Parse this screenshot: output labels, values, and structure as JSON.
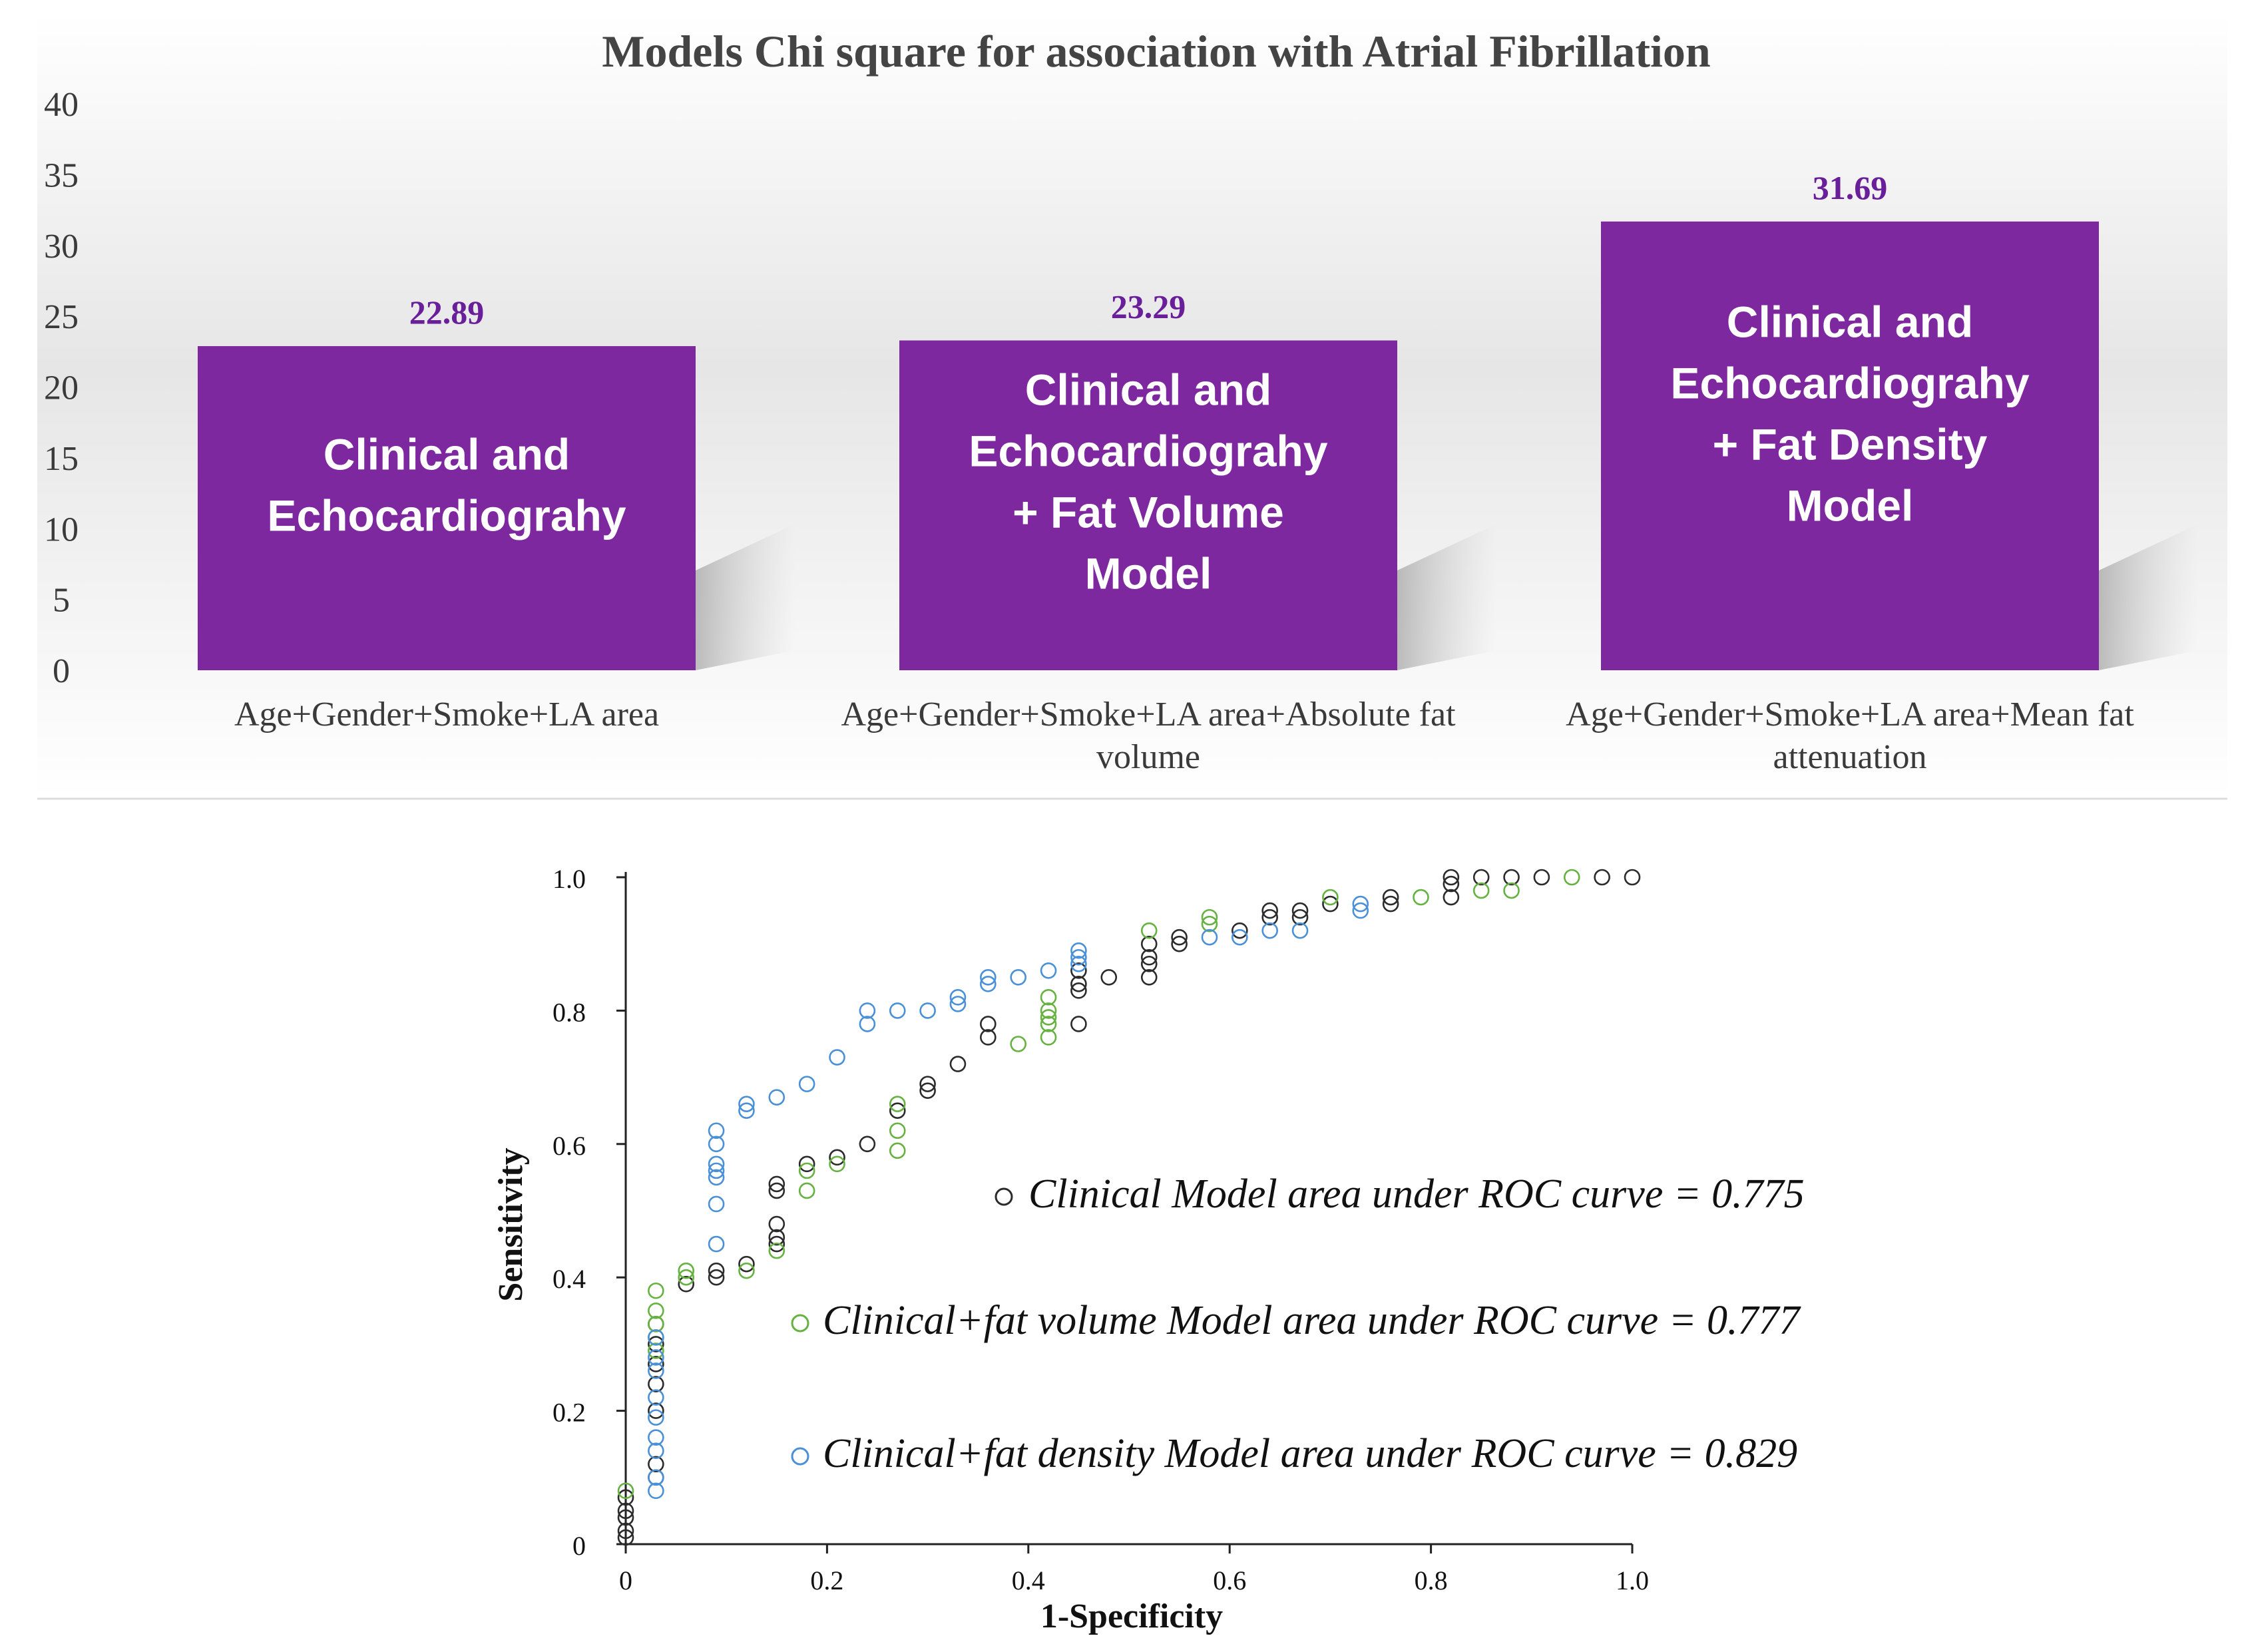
{
  "colors": {
    "bar_fill": "#7e28a0",
    "value_label": "#6a1f9a",
    "text": "#3a3a3a",
    "series_clinical": "#2b2b2b",
    "series_fat_volume": "#66b240",
    "series_fat_density": "#4a90d9"
  },
  "chart_data": [
    {
      "type": "bar",
      "title": "Models Chi square for association with Atrial Fibrillation",
      "ylim": [
        0,
        40
      ],
      "yticks": [
        "0",
        "5",
        "10",
        "15",
        "20",
        "25",
        "30",
        "35",
        "40"
      ],
      "ytick_values": [
        0,
        5,
        10,
        15,
        20,
        25,
        30,
        35,
        40
      ],
      "categories": [
        [
          "Age+Gender+Smoke+LA area"
        ],
        [
          "Age+Gender+Smoke+LA area+Absolute fat",
          "volume"
        ],
        [
          "Age+Gender+Smoke+LA area+Mean fat",
          "attenuation"
        ]
      ],
      "values": [
        22.89,
        23.29,
        31.69
      ],
      "value_labels": [
        "22.89",
        "23.29",
        "31.69"
      ],
      "bar_labels": [
        [
          "Clinical and",
          "Echocardiograhy"
        ],
        [
          "Clinical and",
          "Echocardiograhy",
          "+ Fat Volume",
          "Model"
        ],
        [
          "Clinical and",
          "Echocardiograhy",
          "+ Fat Density",
          "Model"
        ]
      ]
    },
    {
      "type": "scatter",
      "xlabel": "1-Specificity",
      "ylabel": "Sensitivity",
      "xlim": [
        0,
        1
      ],
      "ylim": [
        0,
        1
      ],
      "xticks": [
        "0",
        "0.2",
        "0.4",
        "0.6",
        "0.8",
        "1.0"
      ],
      "xtick_values": [
        0,
        0.2,
        0.4,
        0.6,
        0.8,
        1.0
      ],
      "yticks": [
        "0",
        "0.2",
        "0.4",
        "0.6",
        "0.8",
        "1.0"
      ],
      "ytick_values": [
        0,
        0.2,
        0.4,
        0.6,
        0.8,
        1.0
      ],
      "series": [
        {
          "name": "Clinical Model area under ROC curve = 0.775",
          "color_key": "series_clinical",
          "points": [
            [
              0,
              0.01
            ],
            [
              0,
              0.02
            ],
            [
              0,
              0.04
            ],
            [
              0,
              0.05
            ],
            [
              0,
              0.07
            ],
            [
              0.03,
              0.1
            ],
            [
              0.03,
              0.12
            ],
            [
              0.03,
              0.2
            ],
            [
              0.03,
              0.24
            ],
            [
              0.03,
              0.27
            ],
            [
              0.03,
              0.3
            ],
            [
              0.03,
              0.33
            ],
            [
              0.06,
              0.39
            ],
            [
              0.09,
              0.4
            ],
            [
              0.09,
              0.41
            ],
            [
              0.12,
              0.42
            ],
            [
              0.15,
              0.45
            ],
            [
              0.15,
              0.46
            ],
            [
              0.15,
              0.48
            ],
            [
              0.15,
              0.53
            ],
            [
              0.15,
              0.54
            ],
            [
              0.18,
              0.57
            ],
            [
              0.21,
              0.58
            ],
            [
              0.24,
              0.6
            ],
            [
              0.27,
              0.65
            ],
            [
              0.3,
              0.68
            ],
            [
              0.3,
              0.69
            ],
            [
              0.33,
              0.72
            ],
            [
              0.36,
              0.76
            ],
            [
              0.36,
              0.78
            ],
            [
              0.45,
              0.78
            ],
            [
              0.45,
              0.83
            ],
            [
              0.45,
              0.84
            ],
            [
              0.45,
              0.86
            ],
            [
              0.48,
              0.85
            ],
            [
              0.52,
              0.85
            ],
            [
              0.52,
              0.87
            ],
            [
              0.52,
              0.88
            ],
            [
              0.52,
              0.9
            ],
            [
              0.55,
              0.9
            ],
            [
              0.55,
              0.91
            ],
            [
              0.61,
              0.92
            ],
            [
              0.64,
              0.94
            ],
            [
              0.64,
              0.95
            ],
            [
              0.67,
              0.94
            ],
            [
              0.67,
              0.95
            ],
            [
              0.7,
              0.96
            ],
            [
              0.76,
              0.96
            ],
            [
              0.76,
              0.97
            ],
            [
              0.82,
              0.97
            ],
            [
              0.82,
              0.99
            ],
            [
              0.82,
              1.0
            ],
            [
              0.85,
              1.0
            ],
            [
              0.88,
              1.0
            ],
            [
              0.91,
              1.0
            ],
            [
              0.97,
              1.0
            ],
            [
              1.0,
              1.0
            ]
          ]
        },
        {
          "name": "Clinical+fat volume Model area under ROC curve = 0.777",
          "color_key": "series_fat_volume",
          "points": [
            [
              0,
              0.08
            ],
            [
              0.03,
              0.29
            ],
            [
              0.03,
              0.31
            ],
            [
              0.03,
              0.33
            ],
            [
              0.03,
              0.35
            ],
            [
              0.03,
              0.38
            ],
            [
              0.06,
              0.4
            ],
            [
              0.06,
              0.41
            ],
            [
              0.12,
              0.41
            ],
            [
              0.15,
              0.44
            ],
            [
              0.18,
              0.53
            ],
            [
              0.18,
              0.56
            ],
            [
              0.21,
              0.57
            ],
            [
              0.27,
              0.59
            ],
            [
              0.27,
              0.62
            ],
            [
              0.27,
              0.66
            ],
            [
              0.39,
              0.75
            ],
            [
              0.42,
              0.76
            ],
            [
              0.42,
              0.78
            ],
            [
              0.42,
              0.79
            ],
            [
              0.42,
              0.8
            ],
            [
              0.42,
              0.82
            ],
            [
              0.52,
              0.92
            ],
            [
              0.58,
              0.93
            ],
            [
              0.58,
              0.94
            ],
            [
              0.7,
              0.97
            ],
            [
              0.79,
              0.97
            ],
            [
              0.85,
              0.98
            ],
            [
              0.88,
              0.98
            ],
            [
              0.94,
              1.0
            ]
          ]
        },
        {
          "name": "Clinical+fat density Model area under ROC curve = 0.829",
          "color_key": "series_fat_density",
          "points": [
            [
              0.03,
              0.08
            ],
            [
              0.03,
              0.1
            ],
            [
              0.03,
              0.14
            ],
            [
              0.03,
              0.16
            ],
            [
              0.03,
              0.19
            ],
            [
              0.03,
              0.22
            ],
            [
              0.03,
              0.26
            ],
            [
              0.03,
              0.28
            ],
            [
              0.03,
              0.31
            ],
            [
              0.09,
              0.45
            ],
            [
              0.09,
              0.51
            ],
            [
              0.09,
              0.55
            ],
            [
              0.09,
              0.56
            ],
            [
              0.09,
              0.57
            ],
            [
              0.09,
              0.6
            ],
            [
              0.09,
              0.62
            ],
            [
              0.12,
              0.65
            ],
            [
              0.12,
              0.66
            ],
            [
              0.15,
              0.67
            ],
            [
              0.18,
              0.69
            ],
            [
              0.21,
              0.73
            ],
            [
              0.24,
              0.78
            ],
            [
              0.24,
              0.8
            ],
            [
              0.27,
              0.8
            ],
            [
              0.3,
              0.8
            ],
            [
              0.33,
              0.81
            ],
            [
              0.33,
              0.82
            ],
            [
              0.36,
              0.84
            ],
            [
              0.36,
              0.85
            ],
            [
              0.39,
              0.85
            ],
            [
              0.42,
              0.86
            ],
            [
              0.45,
              0.87
            ],
            [
              0.45,
              0.88
            ],
            [
              0.45,
              0.89
            ],
            [
              0.58,
              0.91
            ],
            [
              0.61,
              0.91
            ],
            [
              0.64,
              0.92
            ],
            [
              0.67,
              0.92
            ],
            [
              0.73,
              0.95
            ],
            [
              0.73,
              0.96
            ]
          ]
        }
      ]
    }
  ]
}
